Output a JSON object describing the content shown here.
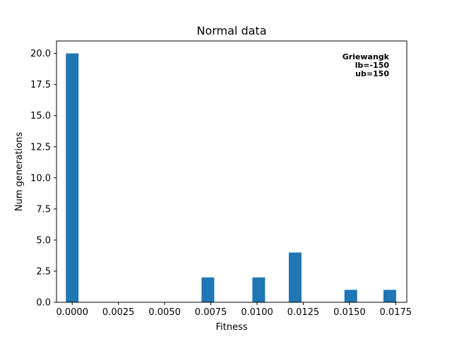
{
  "chart_data": {
    "type": "bar",
    "title": "Normal data",
    "xlabel": "Fitness",
    "ylabel": "Num generations",
    "xlim": [
      -0.00085,
      0.0181
    ],
    "ylim": [
      0,
      21
    ],
    "bar_width": 0.000688,
    "bars": [
      {
        "x": 0.0,
        "value": 20
      },
      {
        "x": 0.00734,
        "value": 2
      },
      {
        "x": 0.01009,
        "value": 2
      },
      {
        "x": 0.01206,
        "value": 4
      },
      {
        "x": 0.01507,
        "value": 1
      },
      {
        "x": 0.01718,
        "value": 1
      }
    ],
    "xticks": [
      {
        "value": 0.0,
        "label": "0.0000"
      },
      {
        "value": 0.0025,
        "label": "0.0025"
      },
      {
        "value": 0.005,
        "label": "0.0050"
      },
      {
        "value": 0.0075,
        "label": "0.0075"
      },
      {
        "value": 0.01,
        "label": "0.0100"
      },
      {
        "value": 0.0125,
        "label": "0.0125"
      },
      {
        "value": 0.015,
        "label": "0.0150"
      },
      {
        "value": 0.0175,
        "label": "0.0175"
      }
    ],
    "yticks": [
      {
        "value": 0.0,
        "label": "0.0"
      },
      {
        "value": 2.5,
        "label": "2.5"
      },
      {
        "value": 5.0,
        "label": "5.0"
      },
      {
        "value": 7.5,
        "label": "7.5"
      },
      {
        "value": 10.0,
        "label": "10.0"
      },
      {
        "value": 12.5,
        "label": "12.5"
      },
      {
        "value": 15.0,
        "label": "15.0"
      },
      {
        "value": 17.5,
        "label": "17.5"
      },
      {
        "value": 20.0,
        "label": "20.0"
      }
    ],
    "annotation": [
      "Griewangk",
      "lb=-150",
      "ub=150"
    ],
    "legend": "none",
    "grid": false,
    "bar_color": "#1f77b4"
  }
}
